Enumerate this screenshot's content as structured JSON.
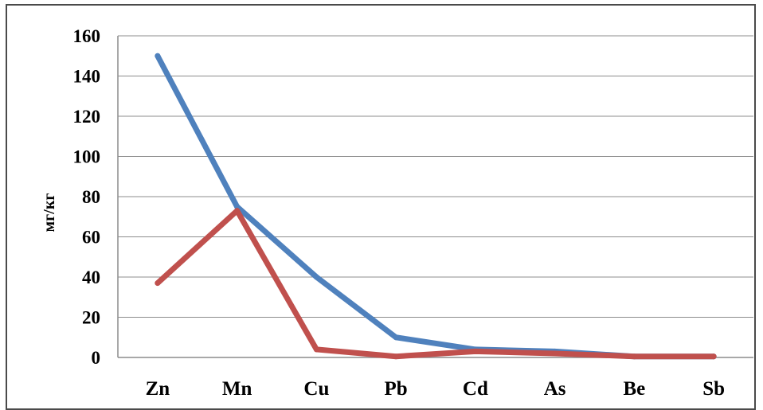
{
  "chart_data": {
    "type": "line",
    "title": "",
    "xlabel": "",
    "ylabel": "мг/кг",
    "categories": [
      "Zn",
      "Mn",
      "Cu",
      "Pb",
      "Cd",
      "As",
      "Be",
      "Sb"
    ],
    "ylim": [
      0,
      160
    ],
    "yticks": [
      0,
      20,
      40,
      60,
      80,
      100,
      120,
      140,
      160
    ],
    "grid": true,
    "legend": "none",
    "series": [
      {
        "color": "#4F81BD",
        "values": [
          150,
          75,
          40,
          10,
          4,
          3,
          0.5,
          0.5
        ]
      },
      {
        "color": "#C0504D",
        "values": [
          37,
          73,
          4,
          0.5,
          3,
          2,
          0.5,
          0.5
        ]
      }
    ]
  }
}
